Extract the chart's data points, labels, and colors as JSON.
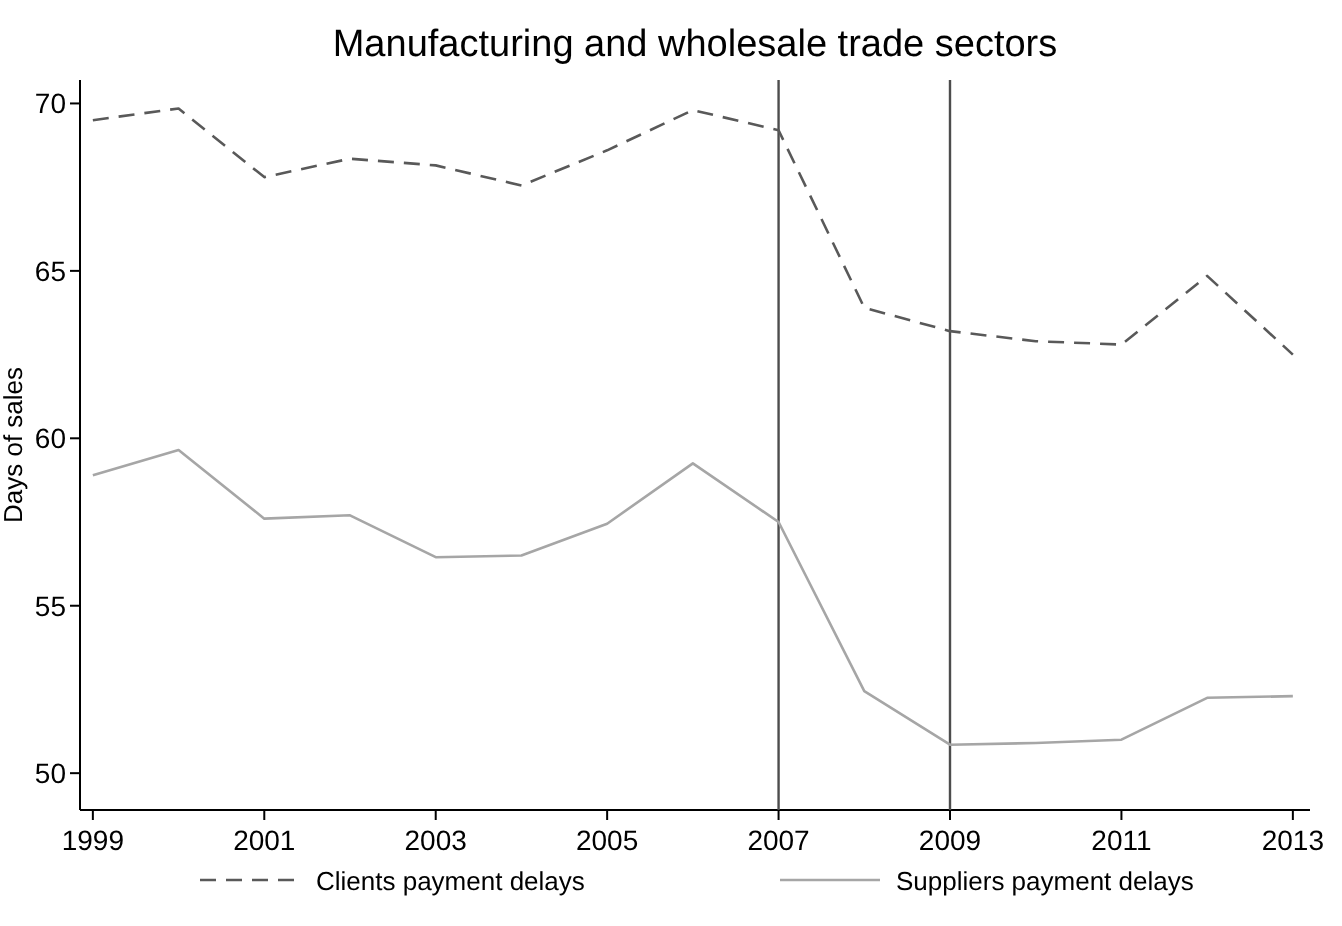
{
  "chart_data": {
    "type": "line",
    "title": "Manufacturing and wholesale trade sectors",
    "ylabel": "Days of sales",
    "x": [
      1999,
      2000,
      2001,
      2002,
      2003,
      2004,
      2005,
      2006,
      2007,
      2008,
      2009,
      2010,
      2011,
      2012,
      2013
    ],
    "series": [
      {
        "name": "Clients payment delays",
        "color": "#595959",
        "line_style": "dashed",
        "values": [
          69.5,
          69.85,
          67.8,
          68.35,
          68.15,
          67.55,
          68.6,
          69.8,
          69.2,
          63.9,
          63.2,
          62.9,
          62.8,
          64.85,
          62.5
        ]
      },
      {
        "name": "Suppliers payment delays",
        "color": "#a6a6a6",
        "line_style": "solid",
        "values": [
          58.9,
          59.65,
          57.6,
          57.7,
          56.45,
          56.5,
          57.45,
          59.25,
          57.5,
          52.45,
          50.85,
          50.9,
          51.0,
          52.25,
          52.3
        ]
      }
    ],
    "xlim": [
      1998.85,
      2013.2
    ],
    "xticks": [
      1999,
      2001,
      2003,
      2005,
      2007,
      2009,
      2011,
      2013
    ],
    "ylim": [
      48.9,
      70.7
    ],
    "yticks": [
      50,
      55,
      60,
      65,
      70
    ],
    "ref_lines": [
      {
        "axis": "x",
        "value": 2007,
        "color": "#4d4d4d"
      },
      {
        "axis": "x",
        "value": 2009,
        "color": "#4d4d4d"
      }
    ],
    "grid": false,
    "legend": "bottom"
  }
}
